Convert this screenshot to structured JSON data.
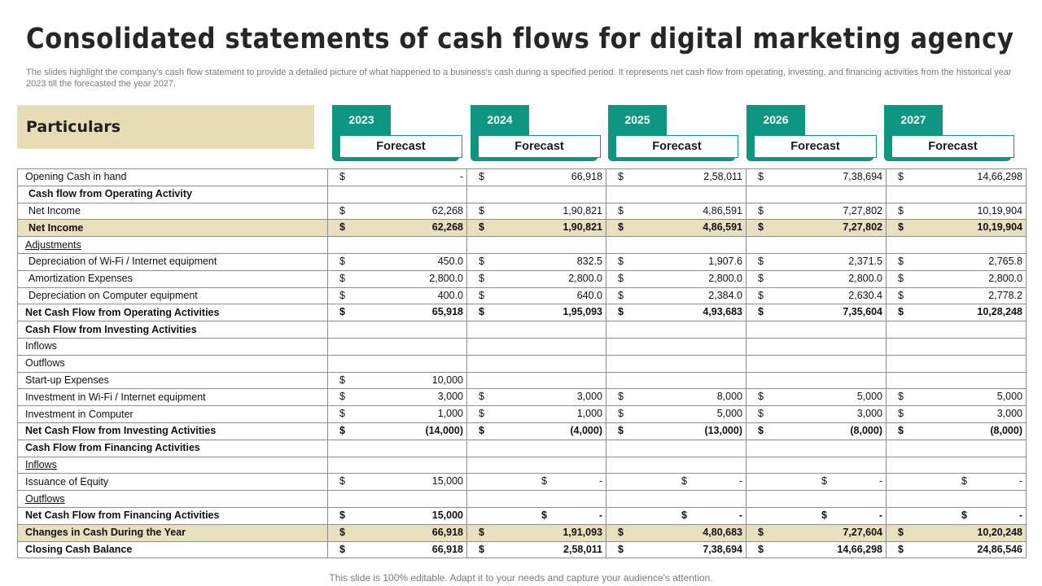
{
  "title": "Consolidated statements of cash flows for digital marketing agency",
  "subtitle": "The slides highlight the company's cash flow statement to provide a detailed picture of what happened to a business's cash during a specified period. It represents net cash flow from operating, investing, and financing activities from the historical year 2023 till the forecasted the year 2027.",
  "header": {
    "particulars": "Particulars",
    "years": [
      {
        "year": "2023",
        "label": "Forecast"
      },
      {
        "year": "2024",
        "label": "Forecast"
      },
      {
        "year": "2025",
        "label": "Forecast"
      },
      {
        "year": "2026",
        "label": "Forecast"
      },
      {
        "year": "2027",
        "label": "Forecast"
      }
    ]
  },
  "colors": {
    "teal": "#0f9683",
    "highlight": "#e9e0bf",
    "particulars_bg": "#e6dcb5"
  },
  "rows": [
    {
      "label": "Opening Cash in hand",
      "style": "",
      "values": [
        [
          "$",
          "-"
        ],
        [
          "$",
          "66,918"
        ],
        [
          "$",
          "2,58,011"
        ],
        [
          "$",
          "7,38,694"
        ],
        [
          "$",
          "14,66,298"
        ]
      ]
    },
    {
      "label": "Cash flow from Operating Activity",
      "style": "bold ind",
      "values": []
    },
    {
      "label": "Net Income",
      "style": "ind",
      "values": [
        [
          "$",
          "62,268"
        ],
        [
          "$",
          "1,90,821"
        ],
        [
          "$",
          "4,86,591"
        ],
        [
          "$",
          "7,27,802"
        ],
        [
          "$",
          "10,19,904"
        ]
      ]
    },
    {
      "label": "Net Income",
      "style": "bold hl ind",
      "values": [
        [
          "$",
          "62,268"
        ],
        [
          "$",
          "1,90,821"
        ],
        [
          "$",
          "4,86,591"
        ],
        [
          "$",
          "7,27,802"
        ],
        [
          "$",
          "10,19,904"
        ]
      ]
    },
    {
      "label": "Adjustments",
      "style": "und",
      "values": []
    },
    {
      "label": "Depreciation of Wi-Fi / Internet equipment",
      "style": "ind",
      "values": [
        [
          "$",
          "450.0"
        ],
        [
          "$",
          "832.5"
        ],
        [
          "$",
          "1,907.6"
        ],
        [
          "$",
          "2,371.5"
        ],
        [
          "$",
          "2,765.8"
        ]
      ]
    },
    {
      "label": "Amortization Expenses",
      "style": "ind",
      "values": [
        [
          "$",
          "2,800.0"
        ],
        [
          "$",
          "2,800.0"
        ],
        [
          "$",
          "2,800.0"
        ],
        [
          "$",
          "2,800.0"
        ],
        [
          "$",
          "2,800.0"
        ]
      ]
    },
    {
      "label": "Depreciation on Computer equipment",
      "style": "ind",
      "values": [
        [
          "$",
          "400.0"
        ],
        [
          "$",
          "640.0"
        ],
        [
          "$",
          "2,384.0"
        ],
        [
          "$",
          "2,630.4"
        ],
        [
          "$",
          "2,778.2"
        ]
      ]
    },
    {
      "label": "Net Cash Flow from Operating Activities",
      "style": "bold",
      "values": [
        [
          "$",
          "65,918"
        ],
        [
          "$",
          "1,95,093"
        ],
        [
          "$",
          "4,93,683"
        ],
        [
          "$",
          "7,35,604"
        ],
        [
          "$",
          "10,28,248"
        ]
      ]
    },
    {
      "label": "Cash Flow from Investing Activities",
      "style": "bold",
      "values": []
    },
    {
      "label": "Inflows",
      "style": "",
      "values": []
    },
    {
      "label": "Outflows",
      "style": "",
      "values": []
    },
    {
      "label": "Start-up Expenses",
      "style": "",
      "values": [
        [
          "$",
          "10,000"
        ]
      ]
    },
    {
      "label": "Investment in Wi-Fi / Internet equipment",
      "style": "",
      "values": [
        [
          "$",
          "3,000"
        ],
        [
          "$",
          "3,000"
        ],
        [
          "$",
          "8,000"
        ],
        [
          "$",
          "5,000"
        ],
        [
          "$",
          "5,000"
        ]
      ]
    },
    {
      "label": "Investment in Computer",
      "style": "",
      "values": [
        [
          "$",
          "1,000"
        ],
        [
          "$",
          "1,000"
        ],
        [
          "$",
          "5,000"
        ],
        [
          "$",
          "3,000"
        ],
        [
          "$",
          "3,000"
        ]
      ]
    },
    {
      "label": "Net Cash Flow from Investing Activities",
      "style": "bold",
      "values": [
        [
          "$",
          "(14,000)"
        ],
        [
          "$",
          "(4,000)"
        ],
        [
          "$",
          "(13,000)"
        ],
        [
          "$",
          "(8,000)"
        ],
        [
          "$",
          "(8,000)"
        ]
      ]
    },
    {
      "label": "Cash Flow from Financing Activities",
      "style": "bold",
      "values": []
    },
    {
      "label": "Inflows",
      "style": "und",
      "values": []
    },
    {
      "label": "Issuance of Equity",
      "style": "",
      "values": [
        [
          "$",
          "15,000"
        ],
        [
          "$",
          "-"
        ],
        [
          "$",
          "-"
        ],
        [
          "$",
          "-"
        ],
        [
          "$",
          "-"
        ]
      ]
    },
    {
      "label": "Outflows",
      "style": "und",
      "values": []
    },
    {
      "label": "Net Cash Flow from Financing Activities",
      "style": "bold",
      "values": [
        [
          "$",
          "15,000"
        ],
        [
          "$",
          "-"
        ],
        [
          "$",
          "-"
        ],
        [
          "$",
          "-"
        ],
        [
          "$",
          "-"
        ]
      ]
    },
    {
      "label": "Changes in Cash During the Year",
      "style": "bold hl",
      "values": [
        [
          "$",
          "66,918"
        ],
        [
          "$",
          "1,91,093"
        ],
        [
          "$",
          "4,80,683"
        ],
        [
          "$",
          "7,27,604"
        ],
        [
          "$",
          "10,20,248"
        ]
      ]
    },
    {
      "label": "Closing Cash Balance",
      "style": "bold",
      "values": [
        [
          "$",
          "66,918"
        ],
        [
          "$",
          "2,58,011"
        ],
        [
          "$",
          "7,38,694"
        ],
        [
          "$",
          "14,66,298"
        ],
        [
          "$",
          "24,86,546"
        ]
      ]
    }
  ],
  "footer": "This slide is 100% editable. Adapt it to your needs and capture your audience's attention."
}
